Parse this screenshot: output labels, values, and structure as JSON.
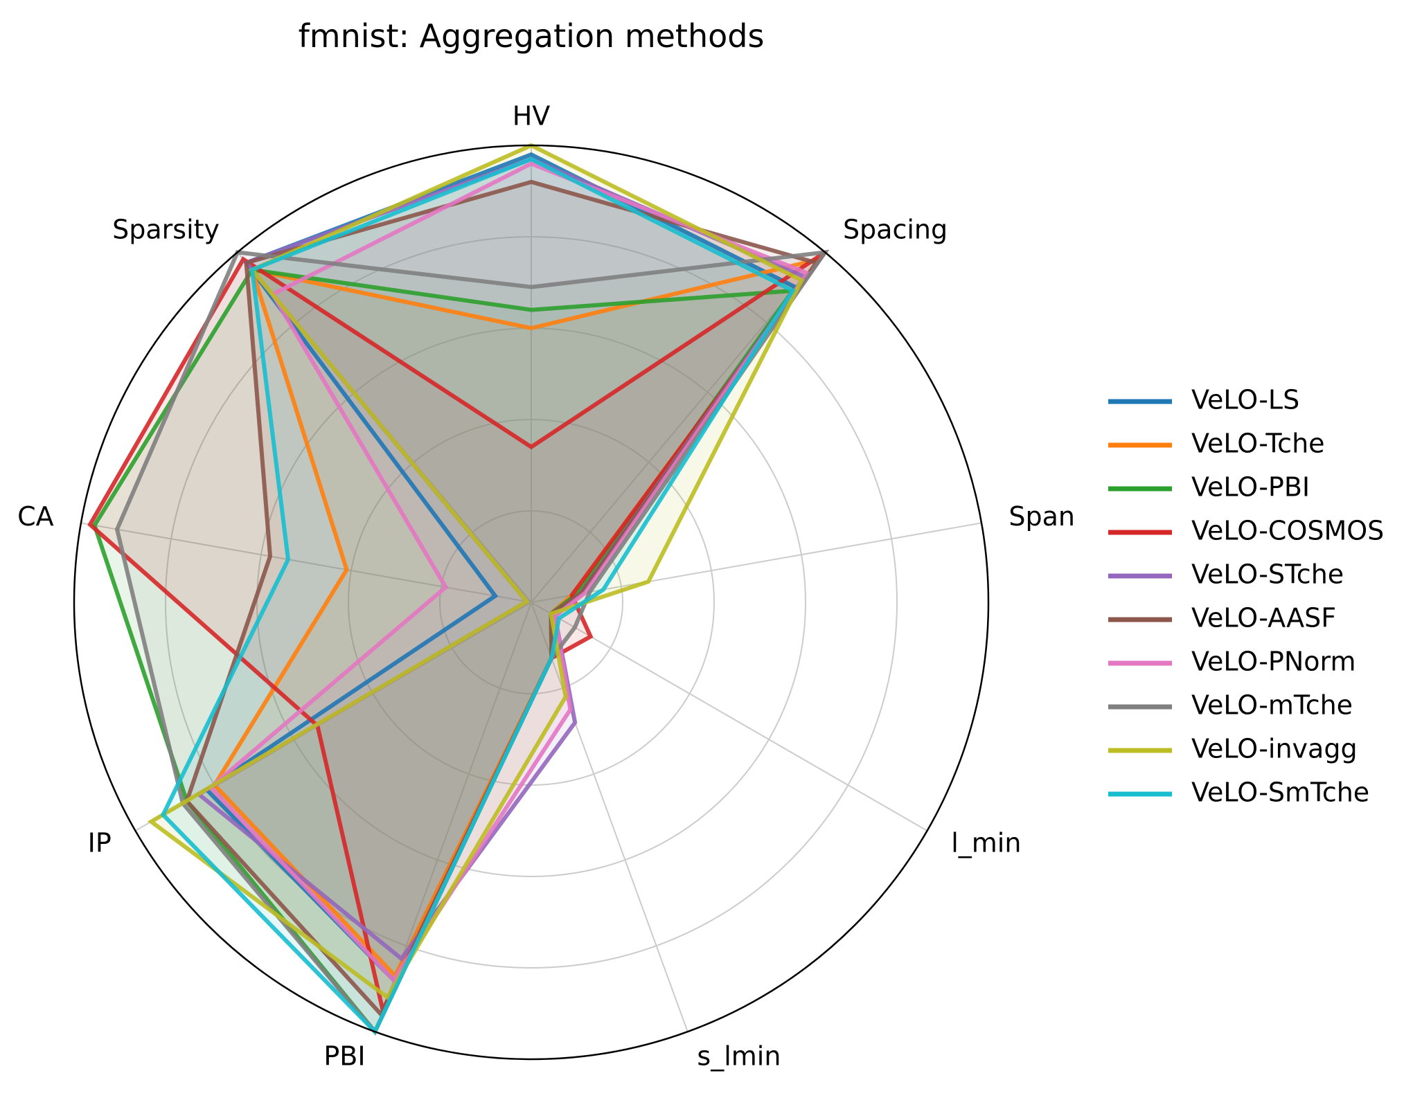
{
  "chart_data": {
    "type": "radar",
    "title": "fmnist: Aggregation methods",
    "axes": [
      "HV",
      "Spacing",
      "Span",
      "l_min",
      "s_lmin",
      "PBI",
      "IP",
      "CA",
      "Sparsity"
    ],
    "rlim": [
      0,
      1
    ],
    "grid": true,
    "legend_position": "right",
    "series": [
      {
        "name": "VeLO-LS",
        "color": "#1f77b4",
        "values": [
          0.98,
          0.9,
          0.11,
          0.05,
          0.13,
          0.88,
          0.82,
          0.08,
          0.97
        ]
      },
      {
        "name": "VeLO-Tche",
        "color": "#ff7f0e",
        "values": [
          0.6,
          0.98,
          0.09,
          0.05,
          0.13,
          0.87,
          0.8,
          0.41,
          0.95
        ]
      },
      {
        "name": "VeLO-PBI",
        "color": "#2ca02c",
        "values": [
          0.64,
          0.89,
          0.1,
          0.05,
          0.13,
          1.0,
          0.87,
          0.97,
          0.95
        ]
      },
      {
        "name": "VeLO-COSMOS",
        "color": "#d62728",
        "values": [
          0.34,
          1.0,
          0.09,
          0.15,
          0.13,
          0.95,
          0.54,
          0.98,
          0.98
        ]
      },
      {
        "name": "VeLO-STche",
        "color": "#9467bd",
        "values": [
          0.97,
          0.93,
          0.11,
          0.06,
          0.28,
          0.83,
          0.84,
          0.01,
          0.97
        ]
      },
      {
        "name": "VeLO-AASF",
        "color": "#8c564b",
        "values": [
          0.92,
          0.97,
          0.11,
          0.05,
          0.13,
          0.96,
          0.87,
          0.58,
          0.97
        ]
      },
      {
        "name": "VeLO-PNorm",
        "color": "#e377c2",
        "values": [
          0.96,
          0.94,
          0.12,
          0.06,
          0.25,
          0.88,
          0.81,
          0.19,
          0.88
        ]
      },
      {
        "name": "VeLO-mTche",
        "color": "#7f7f7f",
        "values": [
          0.69,
          1.0,
          0.13,
          0.11,
          0.13,
          1.0,
          0.88,
          0.92,
          1.0
        ]
      },
      {
        "name": "VeLO-invagg",
        "color": "#bcbd22",
        "values": [
          1.0,
          0.92,
          0.26,
          0.05,
          0.22,
          0.92,
          0.96,
          0.01,
          0.95
        ]
      },
      {
        "name": "VeLO-SmTche",
        "color": "#17becf",
        "values": [
          0.97,
          0.89,
          0.16,
          0.07,
          0.13,
          1.0,
          0.93,
          0.54,
          0.95
        ]
      }
    ]
  }
}
